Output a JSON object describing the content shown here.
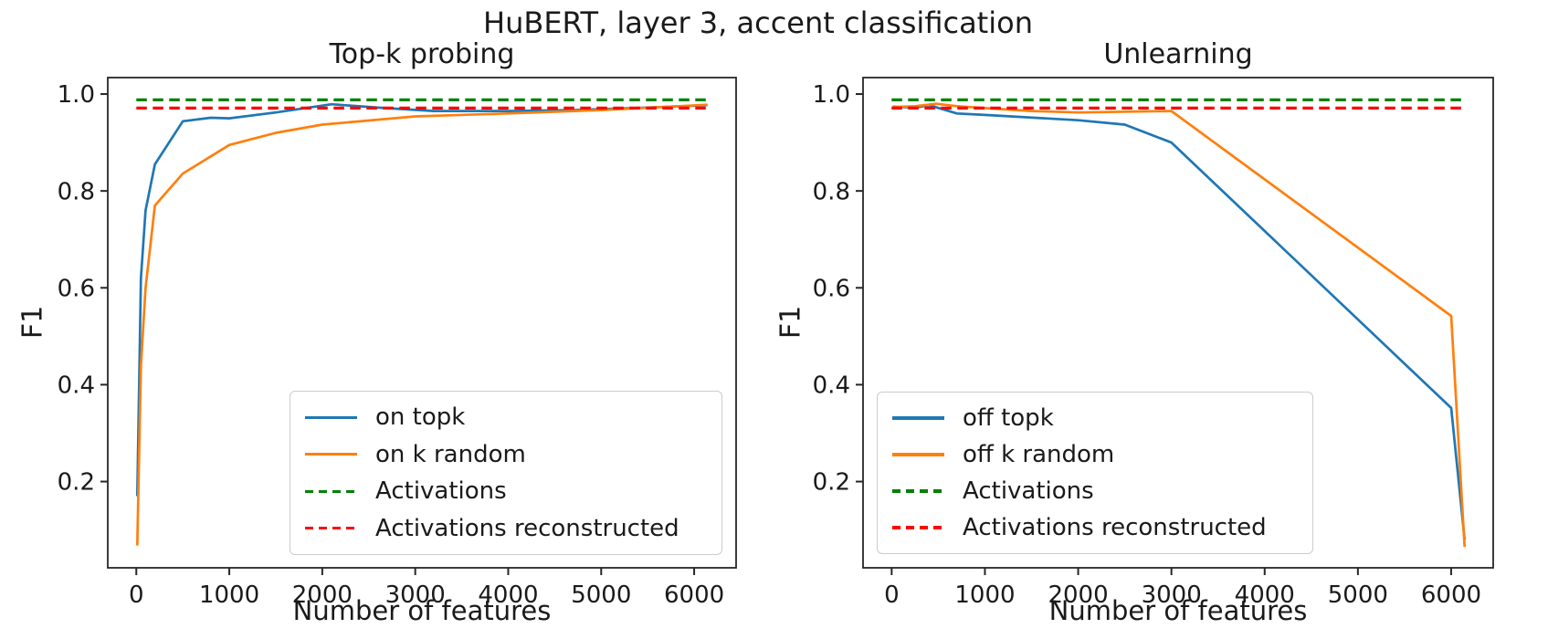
{
  "figure": {
    "title": "HuBERT, layer 3, accent classification",
    "background_color": "#ffffff",
    "text_color": "#1a1a1a",
    "spine_color": "#262626"
  },
  "chart_data": [
    {
      "type": "line",
      "title": "Top-k probing",
      "xlabel": "Number of features",
      "ylabel": "F1",
      "xlim": [
        -307,
        6451
      ],
      "ylim": [
        0.022,
        1.034
      ],
      "grid": false,
      "legend_position": "lower center-right inside axes",
      "xticks": {
        "values": [
          0,
          1000,
          2000,
          3000,
          4000,
          5000,
          6000
        ],
        "labels": [
          "0",
          "1000",
          "2000",
          "3000",
          "4000",
          "5000",
          "6000"
        ]
      },
      "yticks": {
        "values": [
          0.2,
          0.4,
          0.6,
          0.8,
          1.0
        ],
        "labels": [
          "0.2",
          "0.4",
          "0.6",
          "0.8",
          "1.0"
        ]
      },
      "series": [
        {
          "name": "on topk",
          "color": "#1f77b4",
          "line_style": "solid",
          "x": [
            10,
            50,
            100,
            200,
            500,
            800,
            1000,
            1500,
            2100,
            2600,
            3200,
            4000,
            4700,
            5500,
            6144
          ],
          "y": [
            0.17,
            0.62,
            0.76,
            0.855,
            0.944,
            0.951,
            0.95,
            0.962,
            0.979,
            0.972,
            0.965,
            0.965,
            0.967,
            0.972,
            0.977
          ]
        },
        {
          "name": "on k random",
          "color": "#ff7f0e",
          "line_style": "solid",
          "x": [
            10,
            50,
            100,
            200,
            500,
            1000,
            1500,
            2000,
            3000,
            4000,
            5000,
            6144
          ],
          "y": [
            0.068,
            0.44,
            0.6,
            0.77,
            0.836,
            0.895,
            0.92,
            0.937,
            0.954,
            0.96,
            0.967,
            0.978
          ]
        },
        {
          "name": "Activations",
          "color": "#008000",
          "line_style": "dashed",
          "x": [
            0,
            6144
          ],
          "y": [
            0.988,
            0.988
          ]
        },
        {
          "name": "Activations reconstructed",
          "color": "#ff0000",
          "line_style": "dashed",
          "x": [
            0,
            6144
          ],
          "y": [
            0.971,
            0.971
          ]
        }
      ]
    },
    {
      "type": "line",
      "title": "Unlearning",
      "xlabel": "Number of features",
      "ylabel": "F1",
      "xlim": [
        -307,
        6451
      ],
      "ylim": [
        0.022,
        1.034
      ],
      "grid": false,
      "legend_position": "lower left inside axes",
      "xticks": {
        "values": [
          0,
          1000,
          2000,
          3000,
          4000,
          5000,
          6000
        ],
        "labels": [
          "0",
          "1000",
          "2000",
          "3000",
          "4000",
          "5000",
          "6000"
        ]
      },
      "yticks": {
        "values": [
          0.2,
          0.4,
          0.6,
          0.8,
          1.0
        ],
        "labels": [
          "0.2",
          "0.4",
          "0.6",
          "0.8",
          "1.0"
        ]
      },
      "series": [
        {
          "name": "off topk",
          "color": "#1f77b4",
          "line_style": "solid",
          "x": [
            10,
            250,
            400,
            700,
            1000,
            2000,
            2500,
            3000,
            6000,
            6144
          ],
          "y": [
            0.974,
            0.972,
            0.977,
            0.96,
            0.957,
            0.946,
            0.937,
            0.9,
            0.352,
            0.08
          ]
        },
        {
          "name": "off k random",
          "color": "#ff7f0e",
          "line_style": "solid",
          "x": [
            10,
            250,
            480,
            700,
            1000,
            1500,
            2000,
            3000,
            6000,
            6144
          ],
          "y": [
            0.973,
            0.975,
            0.98,
            0.975,
            0.971,
            0.965,
            0.962,
            0.965,
            0.542,
            0.065
          ]
        },
        {
          "name": "Activations",
          "color": "#008000",
          "line_style": "dashed",
          "x": [
            0,
            6144
          ],
          "y": [
            0.988,
            0.988
          ]
        },
        {
          "name": "Activations reconstructed",
          "color": "#ff0000",
          "line_style": "dashed",
          "x": [
            0,
            6144
          ],
          "y": [
            0.971,
            0.971
          ]
        }
      ]
    }
  ]
}
